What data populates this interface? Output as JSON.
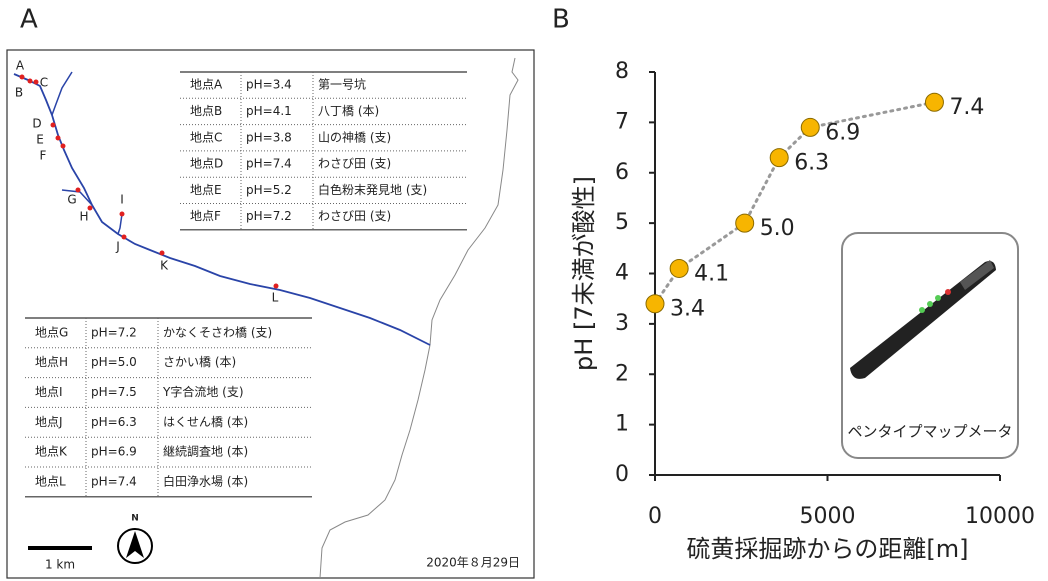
{
  "panel_labels": [
    "A",
    "B"
  ],
  "map": {
    "point_labels": [
      "A",
      "B",
      "C",
      "D",
      "E",
      "F",
      "G",
      "H",
      "I",
      "J",
      "K",
      "L"
    ],
    "table_top": {
      "rows": [
        [
          "地点A",
          "pH=3.4",
          "第一号坑"
        ],
        [
          "地点B",
          "pH=4.1",
          "八丁橋 (本)"
        ],
        [
          "地点C",
          "pH=3.8",
          "山の神橋 (支)"
        ],
        [
          "地点D",
          "pH=7.4",
          "わさび田 (支)"
        ],
        [
          "地点E",
          "pH=5.2",
          "白色粉末発見地 (支)"
        ],
        [
          "地点F",
          "pH=7.2",
          "わさび田 (支)"
        ]
      ]
    },
    "table_bottom": {
      "rows": [
        [
          "地点G",
          "pH=7.2",
          "かなくそさわ橋 (支)"
        ],
        [
          "地点H",
          "pH=5.0",
          "さかい橋 (本)"
        ],
        [
          "地点I",
          "pH=7.5",
          "Y字合流地 (支)"
        ],
        [
          "地点J",
          "pH=6.3",
          "はくせん橋 (本)"
        ],
        [
          "地点K",
          "pH=6.9",
          "継続調査地 (本)"
        ],
        [
          "地点L",
          "pH=7.4",
          "白田浄水場 (本)"
        ]
      ]
    },
    "scale_label": "1 km",
    "north_label": "N",
    "date": "2020年８月29日"
  },
  "chart_data": {
    "type": "line",
    "xlabel": "硫黄採掘跡からの距離[m]",
    "ylabel": "pH [7未満が酸性]",
    "x": [
      0,
      700,
      2600,
      3600,
      4500,
      8100
    ],
    "values": [
      3.4,
      4.1,
      5.0,
      6.3,
      6.9,
      7.4
    ],
    "value_labels": [
      "3.4",
      "4.1",
      "5.0",
      "6.3",
      "6.9",
      "7.4"
    ],
    "color": "#f7b500",
    "line_color": "#999999",
    "xlim": [
      0,
      10000
    ],
    "xticks": [
      0,
      5000,
      10000
    ],
    "ylim": [
      0,
      8
    ],
    "yticks": [
      0,
      1,
      2,
      3,
      4,
      5,
      6,
      7,
      8
    ],
    "inset_caption": "ペンタイプマップメータ"
  }
}
